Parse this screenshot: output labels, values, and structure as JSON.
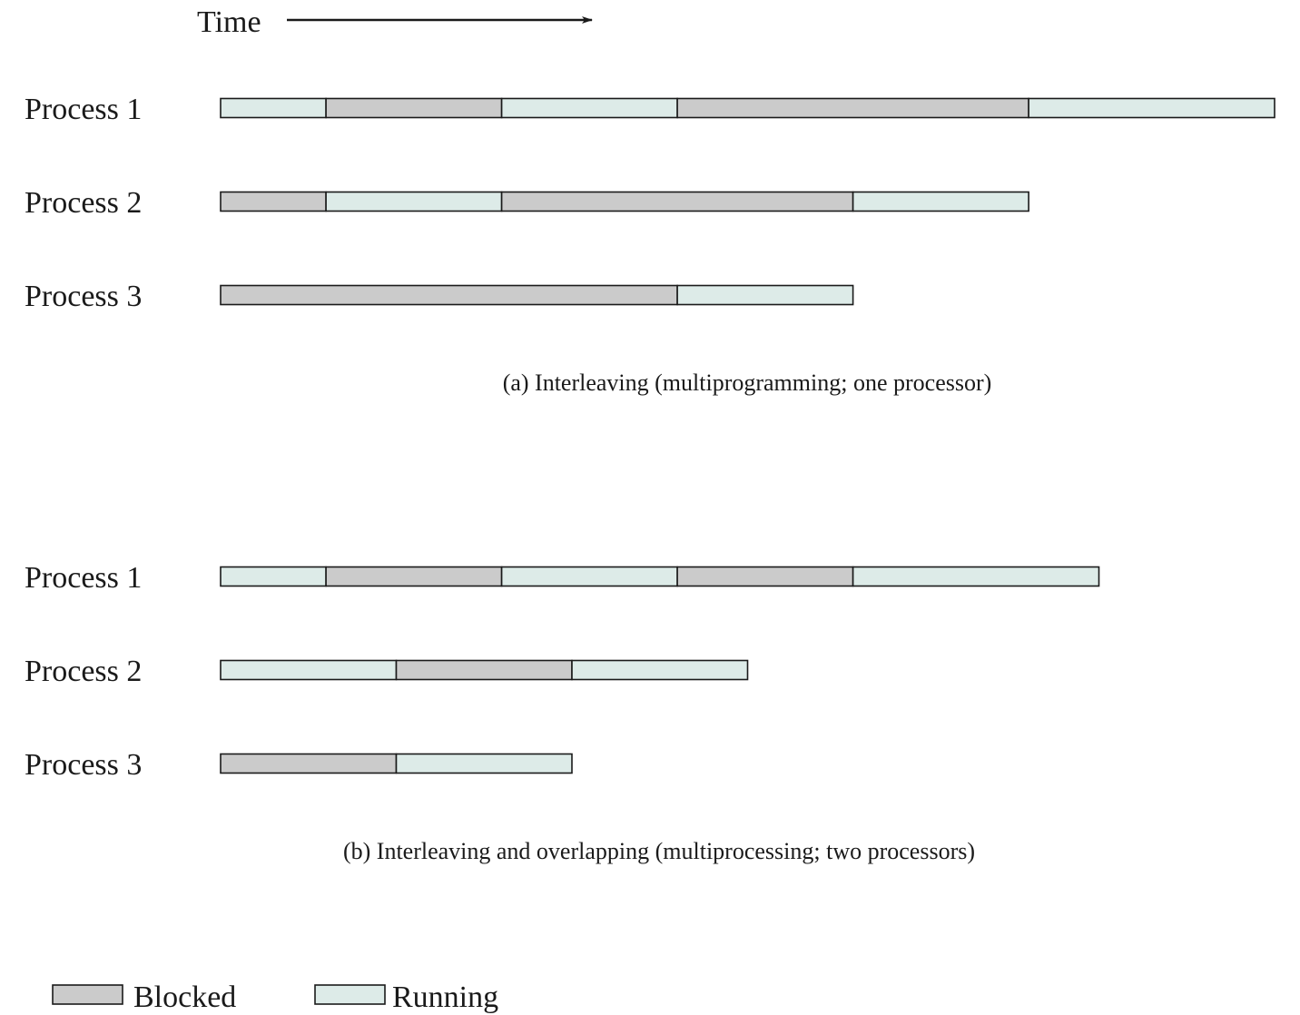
{
  "time_label": "Time",
  "colors": {
    "blocked": "#cbcbcb",
    "running": "#ddebe8",
    "outline": "#1a1a1a"
  },
  "panels": [
    {
      "caption": "(a) Interleaving (multiprogramming; one processor)",
      "processes": [
        {
          "label": "Process 1",
          "segments": [
            {
              "state": "running",
              "start": 0,
              "end": 3
            },
            {
              "state": "blocked",
              "start": 3,
              "end": 8
            },
            {
              "state": "running",
              "start": 8,
              "end": 13
            },
            {
              "state": "blocked",
              "start": 13,
              "end": 23
            },
            {
              "state": "running",
              "start": 23,
              "end": 30
            }
          ]
        },
        {
          "label": "Process 2",
          "segments": [
            {
              "state": "blocked",
              "start": 0,
              "end": 3
            },
            {
              "state": "running",
              "start": 3,
              "end": 8
            },
            {
              "state": "blocked",
              "start": 8,
              "end": 18
            },
            {
              "state": "running",
              "start": 18,
              "end": 23
            }
          ]
        },
        {
          "label": "Process 3",
          "segments": [
            {
              "state": "blocked",
              "start": 0,
              "end": 13
            },
            {
              "state": "running",
              "start": 13,
              "end": 18
            }
          ]
        }
      ]
    },
    {
      "caption": "(b) Interleaving and overlapping (multiprocessing; two processors)",
      "processes": [
        {
          "label": "Process 1",
          "segments": [
            {
              "state": "running",
              "start": 0,
              "end": 3
            },
            {
              "state": "blocked",
              "start": 3,
              "end": 8
            },
            {
              "state": "running",
              "start": 8,
              "end": 13
            },
            {
              "state": "blocked",
              "start": 13,
              "end": 18
            },
            {
              "state": "running",
              "start": 18,
              "end": 25
            }
          ]
        },
        {
          "label": "Process 2",
          "segments": [
            {
              "state": "running",
              "start": 0,
              "end": 5
            },
            {
              "state": "blocked",
              "start": 5,
              "end": 10
            },
            {
              "state": "running",
              "start": 10,
              "end": 15
            }
          ]
        },
        {
          "label": "Process 3",
          "segments": [
            {
              "state": "blocked",
              "start": 0,
              "end": 5
            },
            {
              "state": "running",
              "start": 5,
              "end": 10
            }
          ]
        }
      ]
    }
  ],
  "legend": [
    {
      "state": "blocked",
      "label": "Blocked"
    },
    {
      "state": "running",
      "label": "Running"
    }
  ]
}
